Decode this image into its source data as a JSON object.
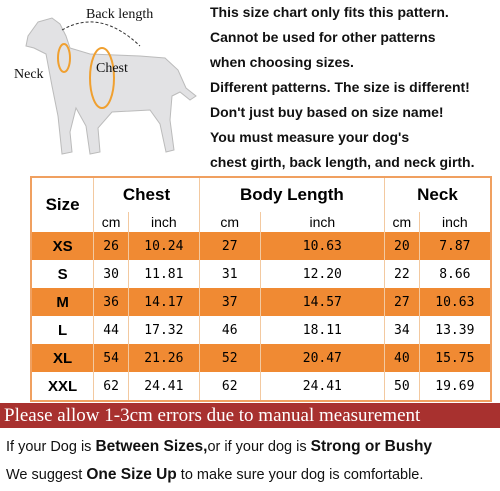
{
  "diagram": {
    "labels": [
      "Back length",
      "Chest",
      "Neck"
    ]
  },
  "notice": [
    "This size chart only fits this pattern.",
    "Cannot be used for other patterns",
    "when choosing sizes.",
    "Different patterns. The size is different!",
    "Don't just buy based on size name!",
    "You must measure your dog's",
    "chest girth, back length, and neck girth."
  ],
  "table": {
    "header": [
      "Size",
      "Chest",
      "Body Length",
      "Neck"
    ],
    "units": [
      "cm",
      "inch",
      "cm",
      "inch",
      "cm",
      "inch"
    ],
    "rows": [
      [
        "XS",
        "26",
        "10.24",
        "27",
        "10.63",
        "20",
        "7.87"
      ],
      [
        "S",
        "30",
        "11.81",
        "31",
        "12.20",
        "22",
        "8.66"
      ],
      [
        "M",
        "36",
        "14.17",
        "37",
        "14.57",
        "27",
        "10.63"
      ],
      [
        "L",
        "44",
        "17.32",
        "46",
        "18.11",
        "34",
        "13.39"
      ],
      [
        "XL",
        "54",
        "21.26",
        "52",
        "20.47",
        "40",
        "15.75"
      ],
      [
        "XXL",
        "62",
        "24.41",
        "62",
        "24.41",
        "50",
        "19.69"
      ]
    ]
  },
  "banner": "Please allow 1-3cm errors due to manual measurement",
  "notes": [
    [
      "If your Dog is ",
      "Between Sizes,",
      "or if your dog is ",
      "Strong or Bushy"
    ],
    [
      "We suggest ",
      "One Size Up",
      " to make sure your dog is comfortable."
    ]
  ]
}
